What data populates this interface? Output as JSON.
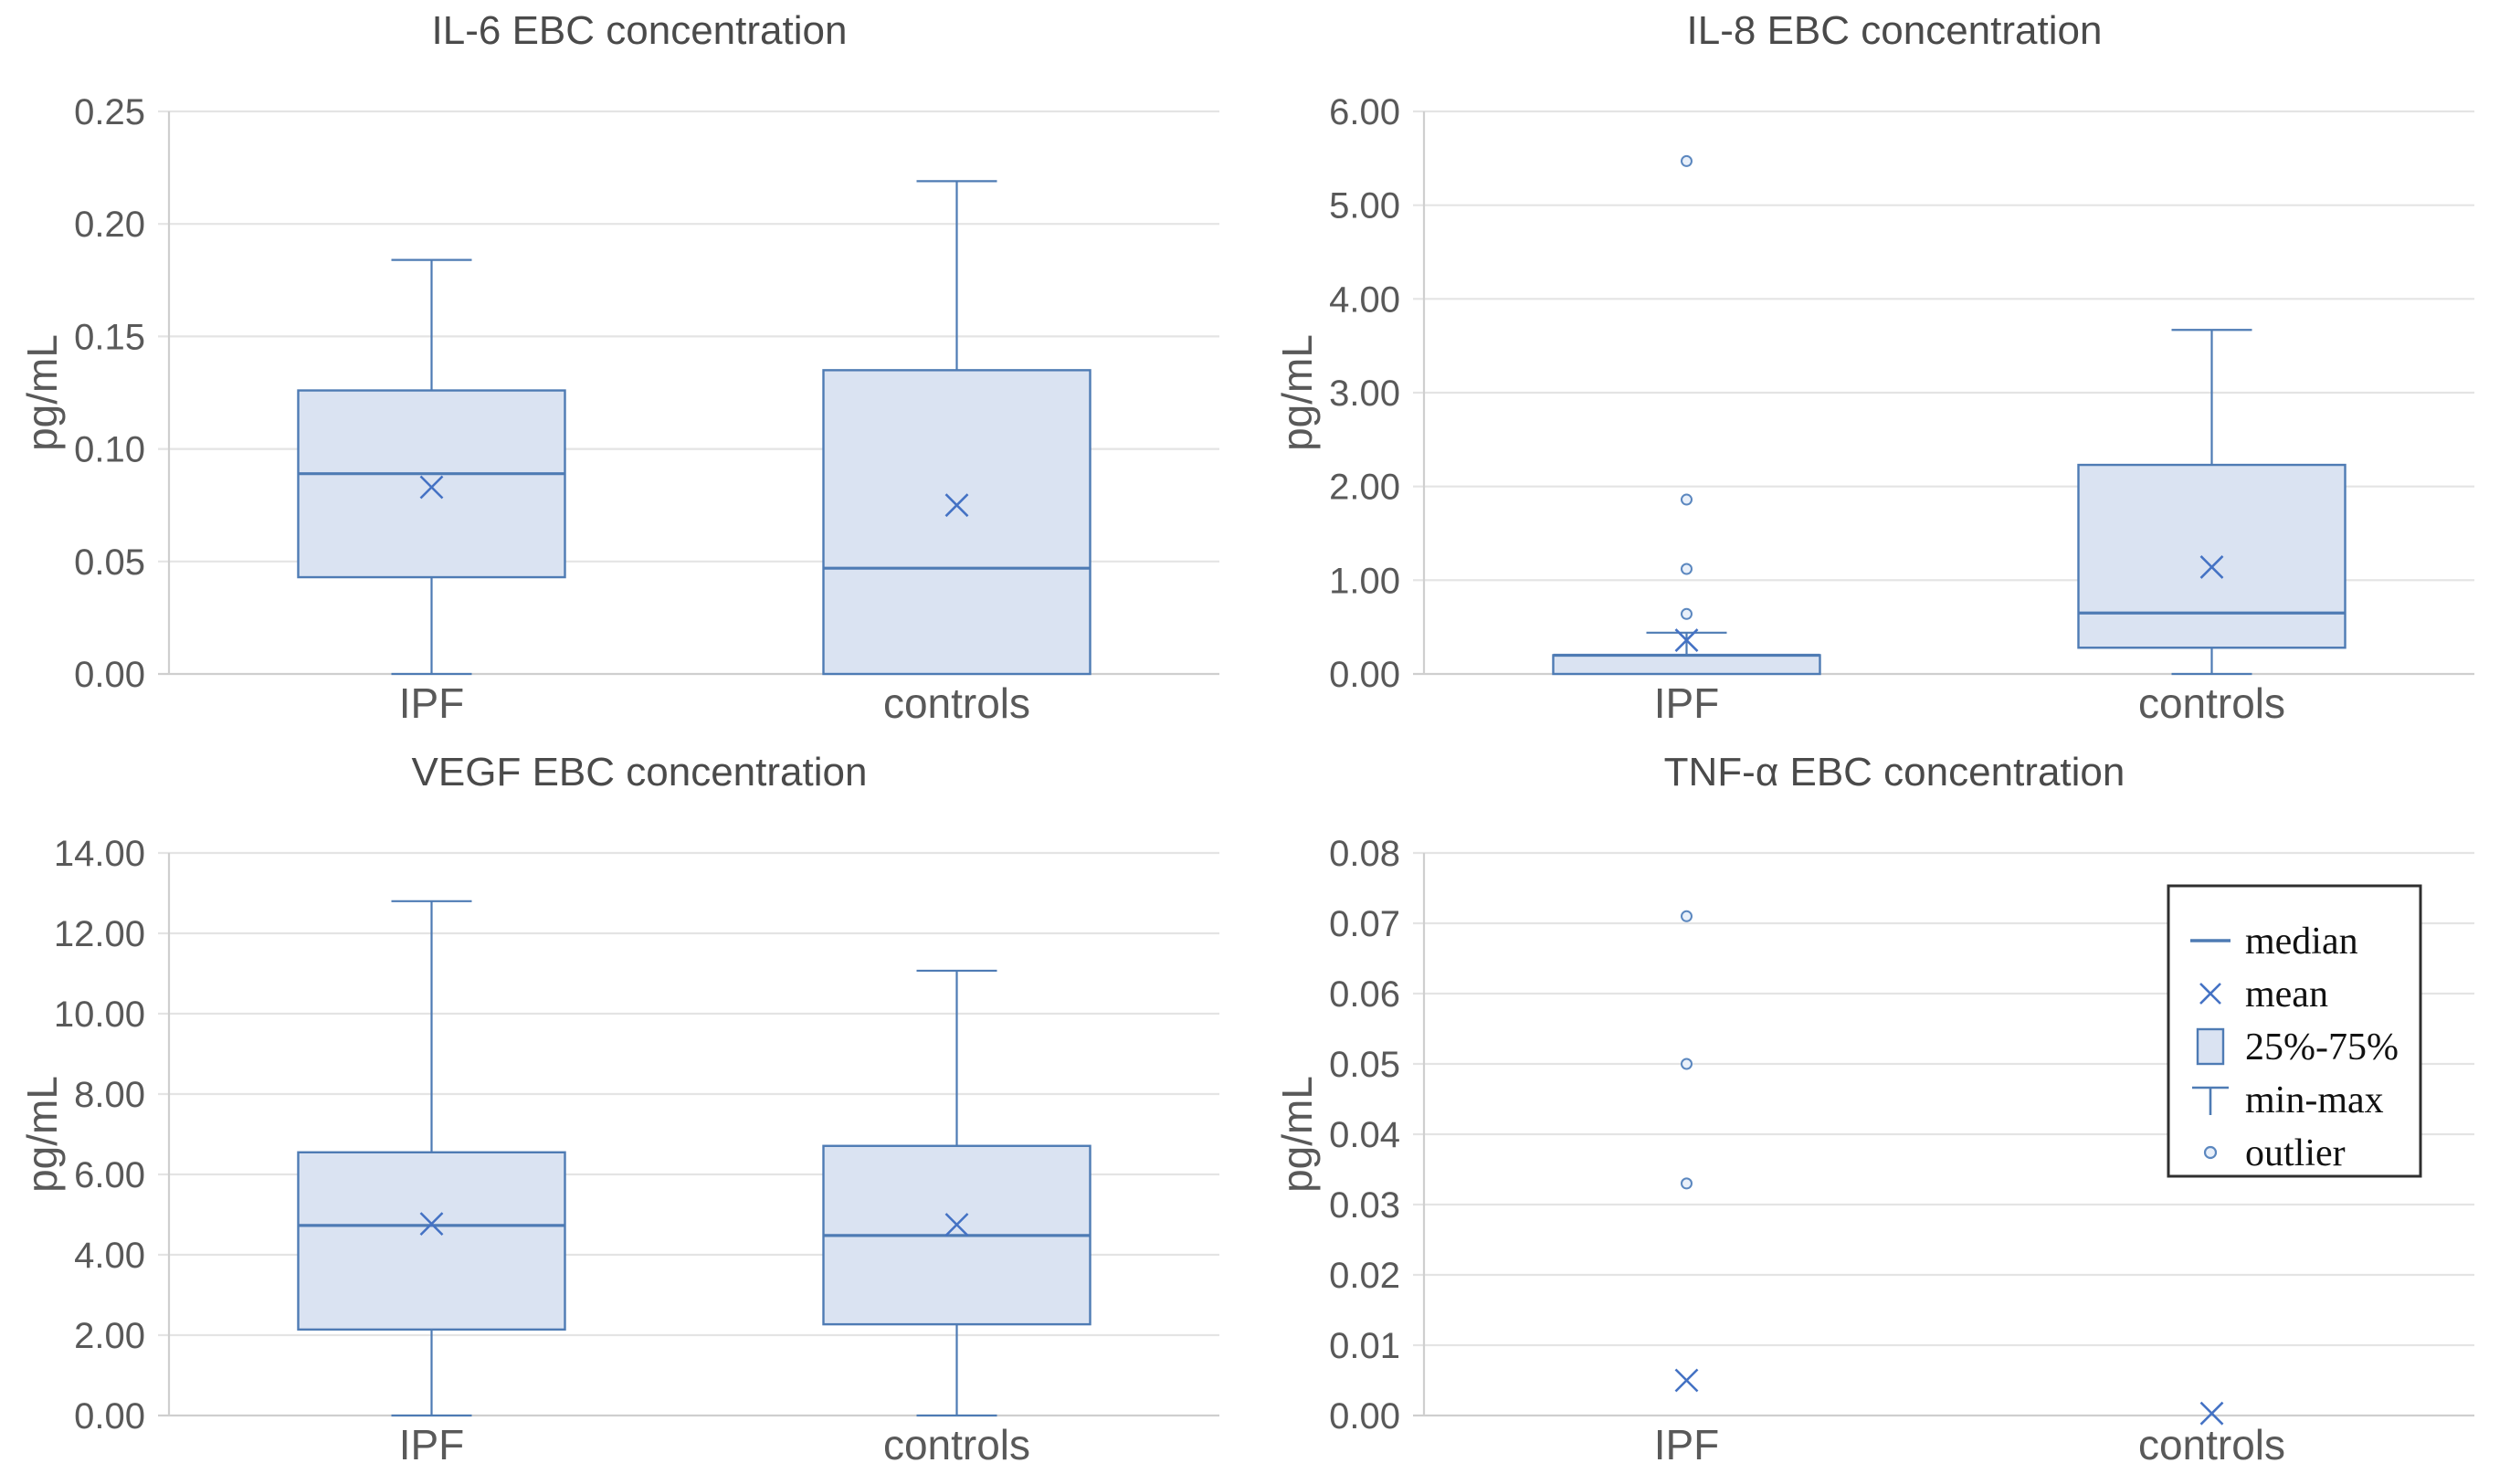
{
  "colors": {
    "background": "#ffffff",
    "grid": "#e4e4e4",
    "axis": "#cfcfcf",
    "tick_text": "#595959",
    "title_text": "#4a4a4a",
    "category_text": "#595959",
    "box_fill": "#dae3f2",
    "box_stroke": "#4e7bb4",
    "median_stroke": "#4e7bb4",
    "mean_marker": "#4472c4",
    "outlier_stroke": "#5b87bf",
    "outlier_fill": "#e9f0fa",
    "legend_border": "#2f2f2f",
    "legend_text": "#111111"
  },
  "legend": {
    "items": [
      {
        "symbol": "median-line",
        "label": "median"
      },
      {
        "symbol": "mean-x",
        "label": "mean"
      },
      {
        "symbol": "box",
        "label": "25%-75%"
      },
      {
        "symbol": "min-max",
        "label": "min-max"
      },
      {
        "symbol": "outlier",
        "label": "outlier"
      }
    ]
  },
  "chart_data": [
    {
      "id": "il6",
      "type": "boxplot",
      "title": "IL-6 EBC concentration",
      "ylabel": "pg/mL",
      "ylim": [
        0,
        0.25
      ],
      "ymax": 0.25,
      "yticks": [
        "0.00",
        "0.05",
        "0.10",
        "0.15",
        "0.20",
        "0.25"
      ],
      "grid": true,
      "legend": false,
      "categories": [
        "IPF",
        "controls"
      ],
      "groups": [
        {
          "category": "IPF",
          "min": 0.0,
          "q1": 0.043,
          "median": 0.089,
          "q3": 0.126,
          "max": 0.184,
          "mean": 0.083,
          "outliers": []
        },
        {
          "category": "controls",
          "min": 0.0,
          "q1": 0.0,
          "median": 0.047,
          "q3": 0.135,
          "max": 0.219,
          "mean": 0.075,
          "outliers": []
        }
      ]
    },
    {
      "id": "il8",
      "type": "boxplot",
      "title": "IL-8 EBC concentration",
      "ylabel": "pg/mL",
      "ylim": [
        0,
        6
      ],
      "ymax": 6,
      "yticks": [
        "0.00",
        "1.00",
        "2.00",
        "3.00",
        "4.00",
        "5.00",
        "6.00"
      ],
      "grid": true,
      "legend": false,
      "categories": [
        "IPF",
        "controls"
      ],
      "groups": [
        {
          "category": "IPF",
          "min": 0.0,
          "q1": 0.0,
          "median": 0.2,
          "q3": 0.2,
          "max": 0.44,
          "mean": 0.36,
          "outliers": [
            0.64,
            1.12,
            1.86,
            5.47
          ]
        },
        {
          "category": "controls",
          "min": 0.0,
          "q1": 0.28,
          "median": 0.65,
          "q3": 2.23,
          "max": 3.67,
          "mean": 1.14,
          "outliers": []
        }
      ]
    },
    {
      "id": "vegf",
      "type": "boxplot",
      "title": "VEGF EBC concentration",
      "ylabel": "pg/mL",
      "ylim": [
        0,
        14
      ],
      "ymax": 14,
      "yticks": [
        "0.00",
        "2.00",
        "4.00",
        "6.00",
        "8.00",
        "10.00",
        "12.00",
        "14.00"
      ],
      "grid": true,
      "legend": false,
      "categories": [
        "IPF",
        "controls"
      ],
      "groups": [
        {
          "category": "IPF",
          "min": 0.0,
          "q1": 2.14,
          "median": 4.73,
          "q3": 6.55,
          "max": 12.8,
          "mean": 4.77,
          "outliers": []
        },
        {
          "category": "controls",
          "min": 0.0,
          "q1": 2.27,
          "median": 4.48,
          "q3": 6.71,
          "max": 11.07,
          "mean": 4.75,
          "outliers": []
        }
      ]
    },
    {
      "id": "tnfa",
      "type": "boxplot",
      "title": "TNF-α EBC concentration",
      "ylabel": "pg/mL",
      "ylim": [
        0,
        0.08
      ],
      "ymax": 0.08,
      "yticks": [
        "0.00",
        "0.01",
        "0.02",
        "0.03",
        "0.04",
        "0.05",
        "0.06",
        "0.07",
        "0.08"
      ],
      "grid": true,
      "legend": true,
      "categories": [
        "IPF",
        "controls"
      ],
      "groups": [
        {
          "category": "IPF",
          "min": 0.0,
          "q1": 0.0,
          "median": 0.0,
          "q3": 0.0,
          "max": 0.0,
          "mean": 0.005,
          "outliers": [
            0.033,
            0.05,
            0.071
          ]
        },
        {
          "category": "controls",
          "min": 0.0,
          "q1": 0.0,
          "median": 0.0,
          "q3": 0.0,
          "max": 0.0,
          "mean": 0.0003,
          "outliers": []
        }
      ]
    }
  ]
}
